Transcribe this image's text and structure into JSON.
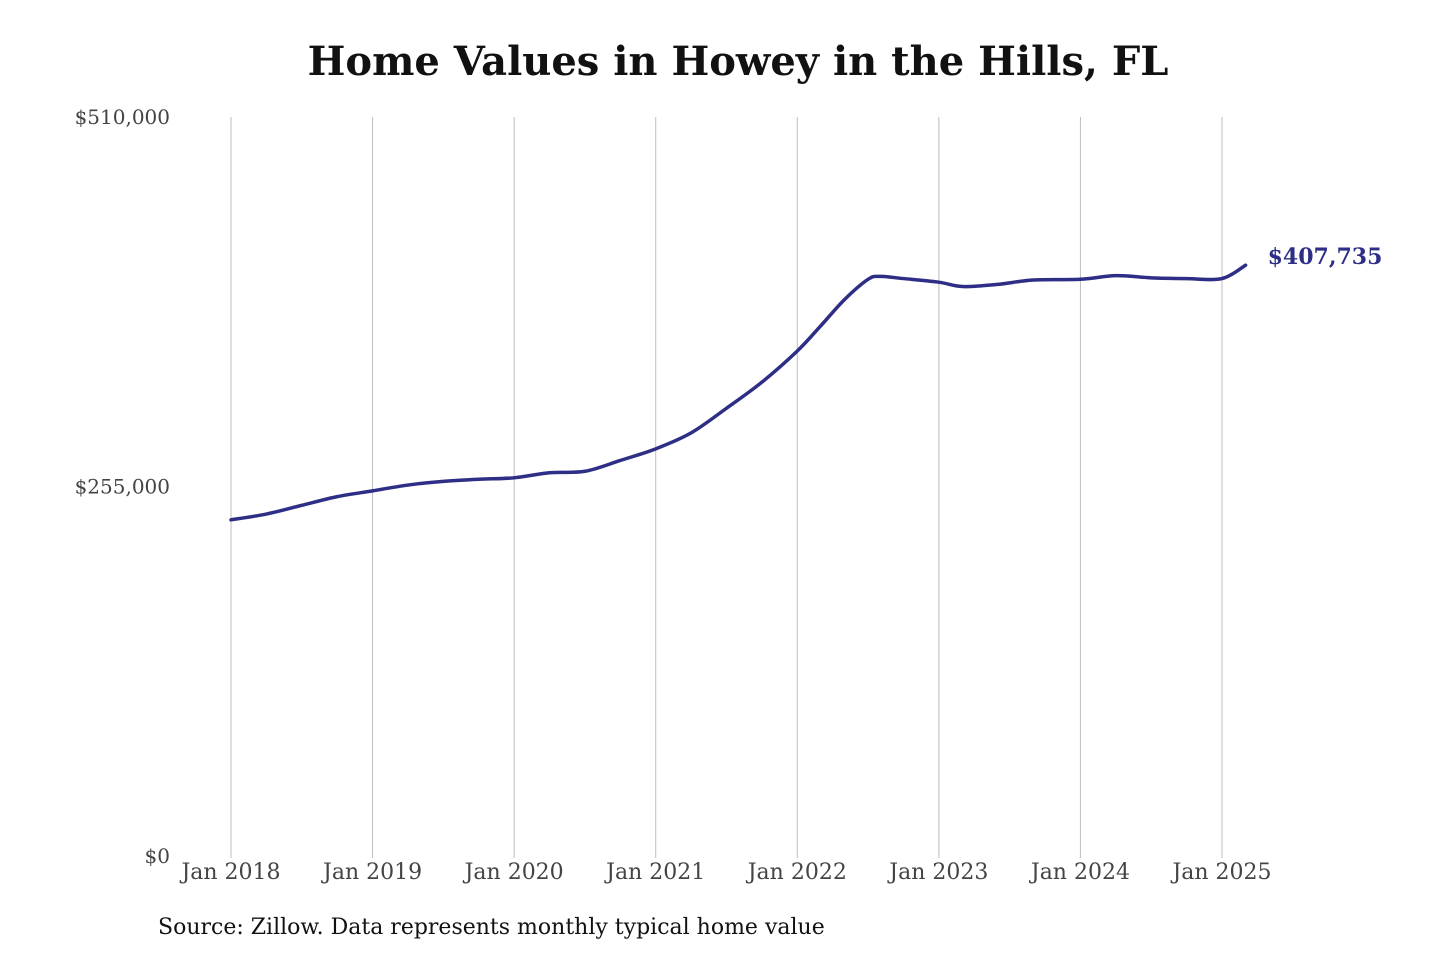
{
  "chart_data": {
    "type": "line",
    "title": "Home Values in Howey in the Hills, FL",
    "xlabel": "",
    "ylabel": "",
    "ylim": [
      0,
      510000
    ],
    "y_ticks": [
      "$510,000",
      "$255,000",
      "$0"
    ],
    "y_tick_values": [
      510000,
      255000,
      0
    ],
    "x_tick_labels": [
      "Jan 2018",
      "Jan 2019",
      "Jan 2020",
      "Jan 2021",
      "Jan 2022",
      "Jan 2023",
      "Jan 2024",
      "Jan 2025"
    ],
    "x_tick_dates": [
      "2018-01",
      "2019-01",
      "2020-01",
      "2021-01",
      "2022-01",
      "2023-01",
      "2024-01",
      "2025-01"
    ],
    "grid": "vertical",
    "line_color": "#2e2e86",
    "end_label": "$407,735",
    "series": [
      {
        "x": [
          "2018-01",
          "2018-04",
          "2018-07",
          "2018-10",
          "2019-01",
          "2019-04",
          "2019-07",
          "2019-10",
          "2020-01",
          "2020-04",
          "2020-07",
          "2020-10",
          "2021-01",
          "2021-04",
          "2021-07",
          "2021-10",
          "2022-01",
          "2022-03",
          "2022-05",
          "2022-07",
          "2022-08",
          "2022-10",
          "2023-01",
          "2023-03",
          "2023-06",
          "2023-09",
          "2024-01",
          "2024-04",
          "2024-07",
          "2024-10",
          "2025-01",
          "2025-03"
        ],
        "values": [
          232000,
          236000,
          242000,
          248000,
          252000,
          256000,
          258500,
          260000,
          261000,
          264500,
          265500,
          273000,
          281000,
          292000,
          309000,
          327000,
          348500,
          366000,
          384000,
          398000,
          400000,
          398500,
          396000,
          393000,
          394500,
          397500,
          398000,
          400500,
          399000,
          398500,
          398500,
          407735
        ]
      }
    ]
  },
  "source": "Source: Zillow. Data represents monthly typical home value"
}
